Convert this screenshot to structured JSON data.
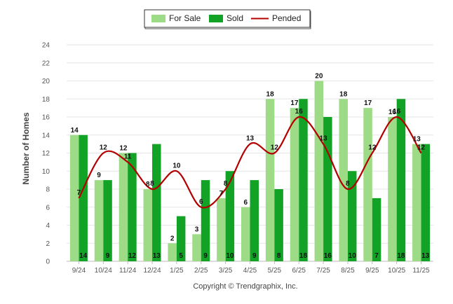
{
  "chart_data": {
    "type": "bar",
    "categories": [
      "9/24",
      "10/24",
      "11/24",
      "12/24",
      "1/25",
      "2/25",
      "3/25",
      "4/25",
      "5/25",
      "6/25",
      "7/25",
      "8/25",
      "9/25",
      "10/25",
      "11/25"
    ],
    "series": [
      {
        "name": "For Sale",
        "type": "bar",
        "color": "#9ddb86",
        "values": [
          14,
          9,
          12,
          8,
          2,
          3,
          7,
          6,
          18,
          17,
          20,
          18,
          17,
          16,
          13
        ]
      },
      {
        "name": "Sold",
        "type": "bar",
        "color": "#12a326",
        "values": [
          14,
          9,
          12,
          13,
          5,
          9,
          10,
          9,
          8,
          18,
          16,
          10,
          7,
          18,
          13
        ]
      },
      {
        "name": "Pended",
        "type": "line",
        "color": "#b30000",
        "values": [
          7,
          12,
          11,
          8,
          10,
          6,
          8,
          13,
          12,
          16,
          13,
          8,
          12,
          16,
          12
        ]
      }
    ],
    "ylabel": "Number of Homes",
    "xlabel": "",
    "ylim": [
      0,
      24
    ],
    "yticks": [
      0,
      2,
      4,
      6,
      8,
      10,
      12,
      14,
      16,
      18,
      20,
      22,
      24
    ],
    "grid": true,
    "legend_position": "top-center"
  },
  "copyright": "Copyright © Trendgraphix, Inc."
}
